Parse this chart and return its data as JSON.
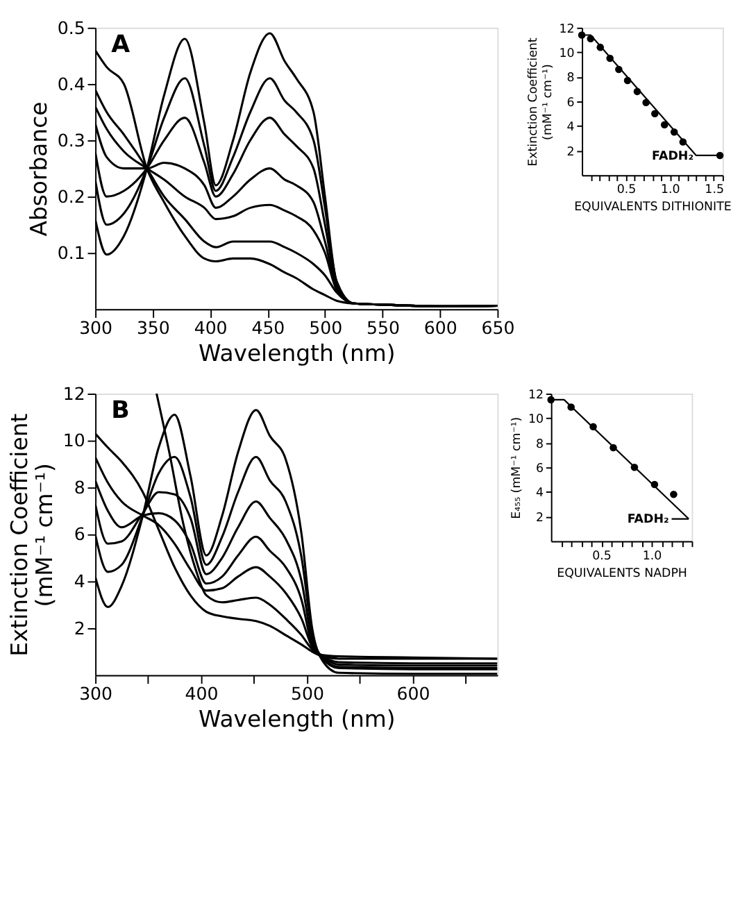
{
  "chart_data": [
    {
      "type": "line",
      "title": "A",
      "xlabel": "Wavelength (nm)",
      "ylabel": "Absorbance",
      "xlim": [
        300,
        650
      ],
      "ylim": [
        0,
        0.5
      ],
      "xticks": [
        300,
        350,
        400,
        450,
        500,
        550,
        600,
        650
      ],
      "yticks": [
        0.1,
        0.2,
        0.3,
        0.4,
        0.5
      ],
      "grid": false,
      "x": [
        300,
        310,
        325,
        345,
        360,
        378,
        395,
        405,
        420,
        435,
        452,
        465,
        475,
        490,
        500,
        510,
        525,
        550,
        600,
        650
      ],
      "series": [
        {
          "color": "#000000",
          "values": [
            0.16,
            0.097,
            0.13,
            0.25,
            0.38,
            0.48,
            0.33,
            0.22,
            0.3,
            0.42,
            0.49,
            0.44,
            0.41,
            0.35,
            0.2,
            0.05,
            0.01,
            0.008,
            0.005,
            0.006
          ]
        },
        {
          "color": "#000000",
          "values": [
            0.23,
            0.15,
            0.17,
            0.25,
            0.34,
            0.41,
            0.29,
            0.21,
            0.27,
            0.35,
            0.41,
            0.37,
            0.35,
            0.3,
            0.18,
            0.05,
            0.01,
            0.008,
            0.005,
            0.006
          ]
        },
        {
          "color": "#000000",
          "values": [
            0.28,
            0.2,
            0.21,
            0.25,
            0.3,
            0.34,
            0.26,
            0.2,
            0.24,
            0.3,
            0.34,
            0.31,
            0.29,
            0.25,
            0.15,
            0.045,
            0.01,
            0.008,
            0.005,
            0.006
          ]
        },
        {
          "color": "#000000",
          "values": [
            0.33,
            0.27,
            0.25,
            0.25,
            0.26,
            0.25,
            0.22,
            0.18,
            0.2,
            0.23,
            0.25,
            0.23,
            0.22,
            0.19,
            0.12,
            0.04,
            0.01,
            0.008,
            0.005,
            0.006
          ]
        },
        {
          "color": "#000000",
          "values": [
            0.36,
            0.32,
            0.28,
            0.25,
            0.23,
            0.2,
            0.18,
            0.16,
            0.165,
            0.18,
            0.185,
            0.175,
            0.165,
            0.14,
            0.1,
            0.035,
            0.01,
            0.008,
            0.005,
            0.006
          ]
        },
        {
          "color": "#000000",
          "values": [
            0.39,
            0.35,
            0.31,
            0.25,
            0.2,
            0.16,
            0.12,
            0.11,
            0.12,
            0.12,
            0.12,
            0.11,
            0.1,
            0.08,
            0.06,
            0.03,
            0.01,
            0.008,
            0.005,
            0.006
          ]
        },
        {
          "color": "#000000",
          "values": [
            0.46,
            0.43,
            0.4,
            0.25,
            0.19,
            0.13,
            0.09,
            0.085,
            0.09,
            0.09,
            0.08,
            0.065,
            0.055,
            0.035,
            0.025,
            0.015,
            0.01,
            0.008,
            0.005,
            0.006
          ]
        }
      ]
    },
    {
      "type": "scatter",
      "xlabel": "EQUIVALENTS  DITHIONITE",
      "ylabel": "Extinction Coefficient\n(mM⁻¹ cm⁻¹)",
      "xlim": [
        0,
        1.6
      ],
      "ylim": [
        0,
        12
      ],
      "grid": false,
      "xticks": [
        {
          "value": 0.1,
          "label": null
        },
        {
          "value": 0.2,
          "label": null
        },
        {
          "value": 0.3,
          "label": null
        },
        {
          "value": 0.4,
          "label": null
        },
        0.5,
        {
          "value": 0.6,
          "label": null
        },
        {
          "value": 0.7,
          "label": null
        },
        {
          "value": 0.8,
          "label": null
        },
        {
          "value": 0.9,
          "label": null
        },
        {
          "value": 1.0,
          "label": "1.0"
        },
        {
          "value": 1.1,
          "label": null
        },
        {
          "value": 1.2,
          "label": null
        },
        {
          "value": 1.3,
          "label": null
        },
        {
          "value": 1.4,
          "label": null
        },
        1.5,
        {
          "value": 1.6,
          "label": null
        }
      ],
      "yticks": [
        2,
        4,
        6,
        8,
        10,
        12
      ],
      "x": [
        0,
        0.1,
        0.21,
        0.32,
        0.42,
        0.52,
        0.63,
        0.73,
        0.83,
        0.94,
        1.05,
        1.15,
        1.57
      ],
      "series": [
        {
          "color": "#000000",
          "marker": "circle",
          "values": [
            11.4,
            11.1,
            10.4,
            9.5,
            8.6,
            7.7,
            6.8,
            5.9,
            5.0,
            4.1,
            3.5,
            2.7,
            1.6
          ]
        },
        {
          "type": "line",
          "color": "#000000",
          "marker": "none",
          "x": [
            0,
            0.1,
            1.3,
            1.57
          ],
          "values": [
            11.4,
            11.4,
            1.6,
            1.6
          ]
        }
      ],
      "annotations": [
        {
          "text": "FADH₂",
          "x": 1.3,
          "y": 1.6
        }
      ]
    },
    {
      "type": "line",
      "title": "B",
      "xlabel": "Wavelength (nm)",
      "ylabel": "Extinction Coefficient\n(mM⁻¹ cm⁻¹)",
      "xlim": [
        300,
        680
      ],
      "ylim": [
        0,
        12
      ],
      "grid": false,
      "xticks": [
        300,
        {
          "value": 350,
          "label": null
        },
        400,
        {
          "value": 450,
          "label": null
        },
        500,
        {
          "value": 550,
          "label": null
        },
        600,
        {
          "value": 650,
          "label": null
        }
      ],
      "yticks": [
        2,
        4,
        6,
        8,
        10,
        12
      ],
      "x": [
        300,
        312,
        325,
        345,
        360,
        375,
        390,
        405,
        420,
        435,
        452,
        465,
        480,
        495,
        505,
        515,
        530,
        600,
        680
      ],
      "series": [
        {
          "color": "#000000",
          "values": [
            4.2,
            2.9,
            3.8,
            6.8,
            9.7,
            11.1,
            8.5,
            5.1,
            6.8,
            9.5,
            11.3,
            10.2,
            9.2,
            6.0,
            2.0,
            0.6,
            0.1,
            0.05,
            0.05
          ]
        },
        {
          "color": "#000000",
          "values": [
            6.0,
            4.4,
            4.7,
            6.8,
            8.6,
            9.3,
            7.6,
            4.7,
            5.9,
            7.8,
            9.3,
            8.3,
            7.4,
            5.0,
            1.8,
            0.7,
            0.3,
            0.25,
            0.25
          ]
        },
        {
          "color": "#000000",
          "values": [
            7.3,
            5.6,
            5.7,
            6.9,
            7.8,
            7.7,
            6.7,
            4.3,
            5.0,
            6.3,
            7.4,
            6.7,
            5.8,
            4.0,
            1.5,
            0.75,
            0.35,
            0.3,
            0.3
          ]
        },
        {
          "color": "#000000",
          "values": [
            8.3,
            7.0,
            6.3,
            6.8,
            6.9,
            6.6,
            5.6,
            3.9,
            4.2,
            5.1,
            5.9,
            5.3,
            4.6,
            3.2,
            1.3,
            0.8,
            0.45,
            0.4,
            0.4
          ]
        },
        {
          "color": "#000000",
          "values": [
            9.3,
            8.2,
            7.4,
            6.8,
            6.4,
            5.6,
            4.5,
            3.6,
            3.7,
            4.2,
            4.6,
            4.2,
            3.5,
            2.4,
            1.2,
            0.8,
            0.55,
            0.5,
            0.5
          ]
        },
        {
          "color": "#000000",
          "values": [
            10.3,
            9.7,
            9.1,
            7.8,
            6.2,
            4.6,
            3.4,
            2.7,
            2.5,
            2.4,
            2.3,
            2.1,
            1.7,
            1.3,
            1.0,
            0.8,
            0.7,
            0.7,
            0.7
          ]
        },
        {
          "color": "#000000",
          "x": [
            358,
            370,
            383,
            395,
            405,
            420,
            435,
            452,
            465,
            480,
            495,
            505,
            515,
            530,
            600,
            680
          ],
          "values": [
            12,
            9.5,
            6.5,
            4.5,
            3.4,
            3.1,
            3.2,
            3.3,
            3.0,
            2.4,
            1.7,
            1.1,
            0.85,
            0.8,
            0.75,
            0.7
          ]
        }
      ]
    },
    {
      "type": "scatter",
      "xlabel": "EQUIVALENTS  NADPH",
      "ylabel": "E₄₅₅ (mM⁻¹ cm⁻¹)",
      "xlim": [
        0,
        1.4
      ],
      "ylim": [
        0,
        12
      ],
      "grid": false,
      "xticks": [
        {
          "value": 0.1,
          "label": null
        },
        {
          "value": 0.2,
          "label": null
        },
        {
          "value": 0.3,
          "label": null
        },
        {
          "value": 0.4,
          "label": null
        },
        0.5,
        {
          "value": 0.6,
          "label": null
        },
        {
          "value": 0.7,
          "label": null
        },
        {
          "value": 0.8,
          "label": null
        },
        {
          "value": 0.9,
          "label": null
        },
        {
          "value": 1.0,
          "label": "1.0"
        },
        {
          "value": 1.1,
          "label": null
        },
        {
          "value": 1.2,
          "label": null
        },
        {
          "value": 1.3,
          "label": null
        },
        {
          "value": 1.4,
          "label": null
        }
      ],
      "yticks": [
        2,
        4,
        6,
        8,
        10,
        12
      ],
      "x": [
        0,
        0.2,
        0.42,
        0.62,
        0.83,
        1.03,
        1.22
      ],
      "series": [
        {
          "color": "#000000",
          "marker": "circle",
          "values": [
            11.5,
            10.9,
            9.3,
            7.6,
            6.0,
            4.6,
            3.8
          ]
        },
        {
          "type": "line",
          "color": "#000000",
          "marker": "none",
          "x": [
            0,
            0.13,
            1.37
          ],
          "values": [
            11.5,
            11.5,
            1.8
          ]
        },
        {
          "type": "line",
          "color": "#000000",
          "marker": "none",
          "x": [
            1.2,
            1.37
          ],
          "values": [
            1.8,
            1.8
          ]
        }
      ],
      "annotations": [
        {
          "text": "FADH₂",
          "x": 1.2,
          "y": 1.8
        }
      ]
    }
  ]
}
